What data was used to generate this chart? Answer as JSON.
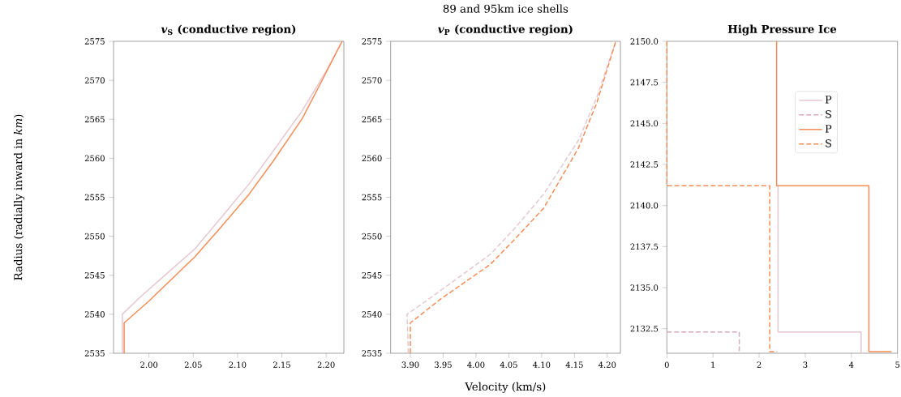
{
  "chart_data": [
    {
      "type": "line",
      "title": "*v*$_{S}$ (conductive region)",
      "ylabel": "Radius (radially inward in *km*)",
      "xlim": [
        1.96,
        2.22
      ],
      "ylim": [
        2535,
        2575
      ],
      "xticks": [
        {
          "value": 2.0,
          "label": "2.00"
        },
        {
          "value": 2.05,
          "label": "2.05"
        },
        {
          "value": 2.1,
          "label": "2.10"
        },
        {
          "value": 2.15,
          "label": "2.15"
        },
        {
          "value": 2.2,
          "label": "2.20"
        }
      ],
      "yticks": [
        2535,
        2540,
        2545,
        2550,
        2555,
        2560,
        2565,
        2570,
        2575
      ],
      "series": [
        {
          "color": "#e6c6d2",
          "line_style": "solid",
          "x": [
            1.97,
            1.97,
            1.99,
            2.02,
            2.052,
            2.08,
            2.113,
            2.14,
            2.173,
            2.2,
            2.218
          ],
          "values": [
            2535,
            2540,
            2542.2,
            2545.2,
            2548.4,
            2552.2,
            2556.7,
            2560.9,
            2566.1,
            2571.2,
            2575
          ]
        },
        {
          "color": "#f58b55",
          "line_style": "solid",
          "x": [
            1.972,
            1.972,
            2.0,
            2.052,
            2.08,
            2.113,
            2.14,
            2.173,
            2.2,
            2.218
          ],
          "values": [
            2535,
            2538.9,
            2541.7,
            2547.4,
            2551.0,
            2555.4,
            2559.6,
            2565.1,
            2571.0,
            2575
          ]
        }
      ]
    },
    {
      "type": "line",
      "title": "*v*$_{P}$ (conductive region)",
      "xlabel": "Velocity (km/s)",
      "annotations": [
        "89 and 95km ice shells"
      ],
      "xlim": [
        3.87,
        4.22
      ],
      "ylim": [
        2535,
        2575
      ],
      "xticks": [
        {
          "value": 3.9,
          "label": "3.90"
        },
        {
          "value": 3.95,
          "label": "3.95"
        },
        {
          "value": 4.0,
          "label": "4.00"
        },
        {
          "value": 4.05,
          "label": "4.05"
        },
        {
          "value": 4.1,
          "label": "4.10"
        },
        {
          "value": 4.15,
          "label": "4.15"
        },
        {
          "value": 4.2,
          "label": "4.20"
        }
      ],
      "yticks": [
        2535,
        2540,
        2545,
        2550,
        2555,
        2560,
        2565,
        2570,
        2575
      ],
      "series": [
        {
          "color": "#e6c6d2",
          "line_style": "dashed",
          "x": [
            3.897,
            3.895,
            3.929,
            3.97,
            4.022,
            4.06,
            4.103,
            4.156,
            4.184,
            4.213
          ],
          "values": [
            2535,
            2540,
            2542.0,
            2544.5,
            2547.7,
            2551.1,
            2555.4,
            2562.3,
            2567.8,
            2575
          ]
        },
        {
          "color": "#f58b55",
          "line_style": "dashed",
          "x": [
            3.9,
            3.9,
            3.947,
            4.022,
            4.06,
            4.103,
            4.156,
            4.184,
            4.213
          ],
          "values": [
            2535,
            2538.9,
            2542.0,
            2546.4,
            2549.7,
            2553.6,
            2561.3,
            2567.1,
            2575
          ]
        }
      ]
    },
    {
      "type": "line",
      "title": "High Pressure Ice",
      "legend": "top right",
      "xlim": [
        0,
        5
      ],
      "ylim": [
        2131.0,
        2150
      ],
      "xticks": [
        0,
        1,
        2,
        3,
        4,
        5
      ],
      "yticks": [
        {
          "value": 2132.5,
          "label": "2132.5"
        },
        {
          "value": 2135,
          "label": "2135.0"
        },
        {
          "value": 2137.5,
          "label": "2137.5"
        },
        {
          "value": 2140,
          "label": "2140.0"
        },
        {
          "value": 2142.5,
          "label": "2142.5"
        },
        {
          "value": 2145,
          "label": "2145.0"
        },
        {
          "value": 2147.5,
          "label": "2147.5"
        },
        {
          "value": 2150,
          "label": "2150.0"
        }
      ],
      "series": [
        {
          "name": "P",
          "color": "#e6c6d2",
          "line_style": "solid",
          "x": [
            2.41,
            2.41,
            4.21,
            4.21
          ],
          "values": [
            2141.2,
            2132.3,
            2132.3,
            2131.0
          ]
        },
        {
          "name": "S",
          "color": "#d8a8bc",
          "line_style": "dashed",
          "x": [
            0,
            1.57,
            1.57
          ],
          "values": [
            2132.3,
            2132.3,
            2131.0
          ]
        },
        {
          "name": "P",
          "color": "#f58b55",
          "line_style": "solid",
          "x": [
            2.38,
            2.38,
            4.38,
            4.38,
            4.87
          ],
          "values": [
            2150,
            2141.2,
            2141.2,
            2131.1,
            2131.1
          ]
        },
        {
          "name": "S",
          "color": "#f58b55",
          "line_style": "dashed",
          "x": [
            0,
            0,
            2.23,
            2.23,
            2.39
          ],
          "values": [
            2150,
            2141.2,
            2141.2,
            2131.1,
            2131.1
          ]
        }
      ]
    }
  ]
}
